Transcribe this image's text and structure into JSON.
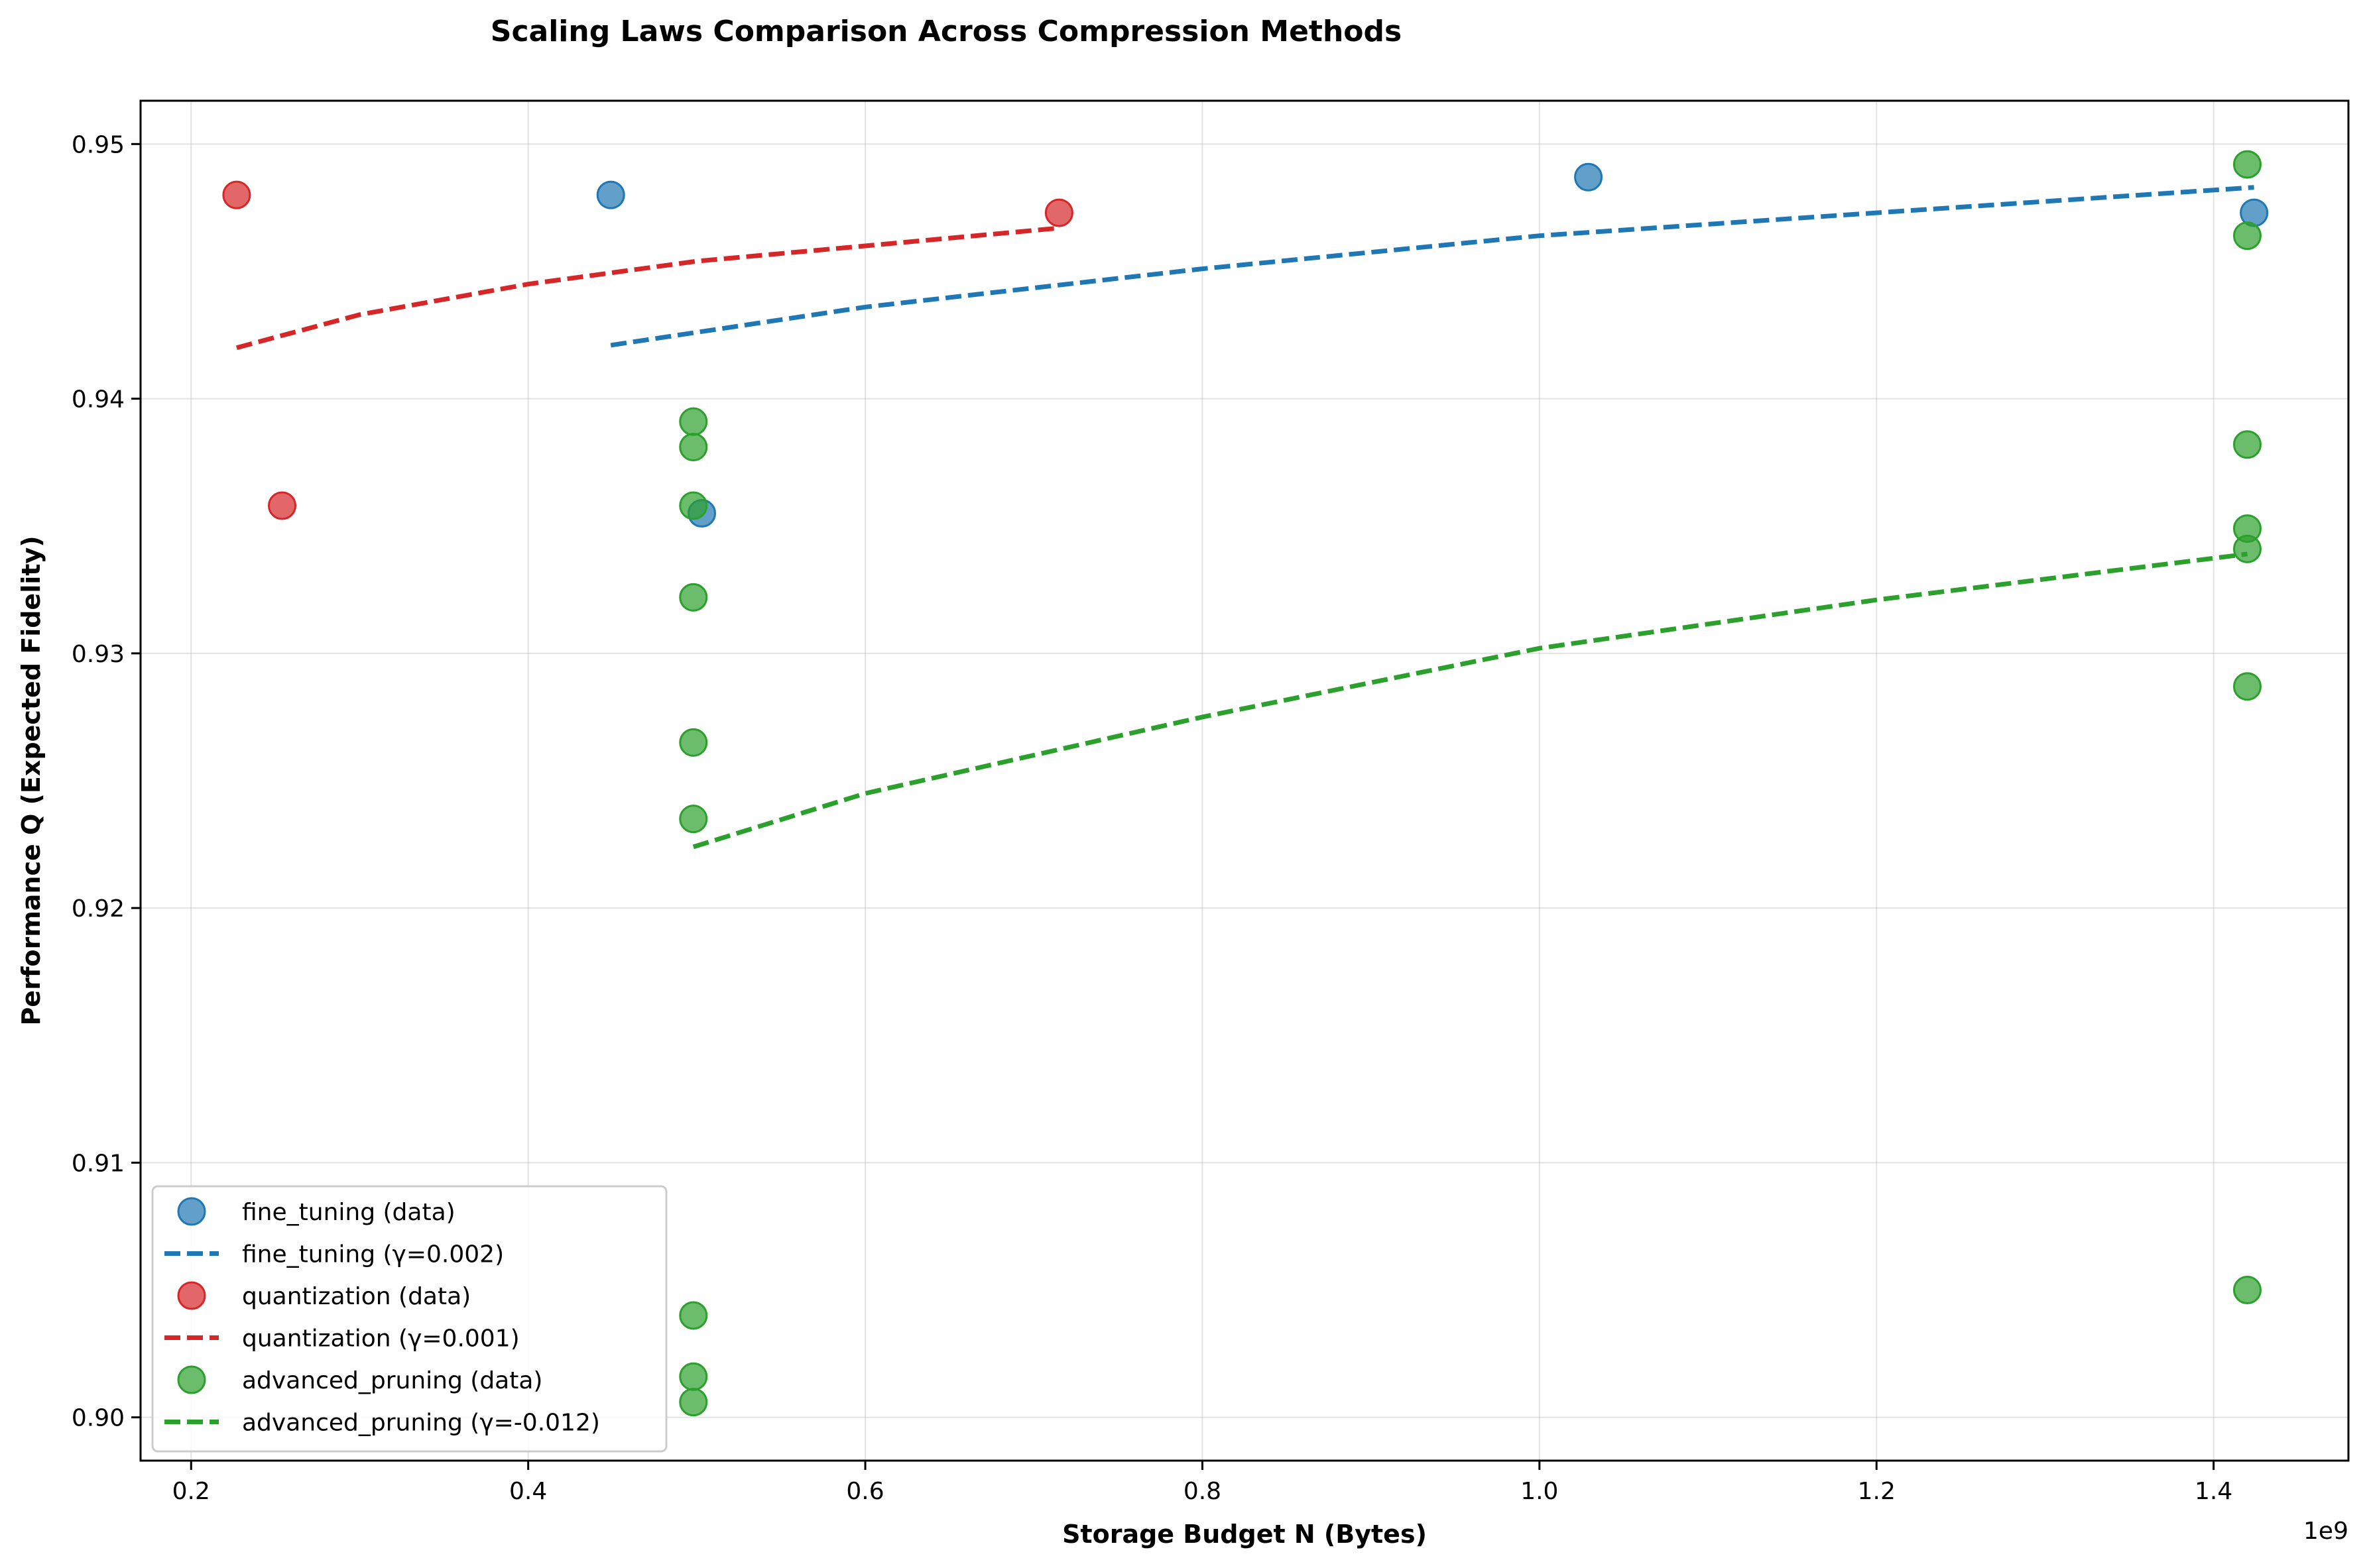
{
  "chart_data": {
    "type": "scatter",
    "title": "Scaling Laws Comparison Across Compression Methods",
    "xlabel": "Storage Budget N (Bytes)",
    "ylabel": "Performance Q (Expected Fidelity)",
    "x_offset_label": "1e9",
    "xlim": [
      0.17,
      1.48
    ],
    "ylim": [
      0.8983,
      0.9517
    ],
    "x_ticks": [
      0.2,
      0.4,
      0.6,
      0.8,
      1.0,
      1.2,
      1.4
    ],
    "x_tick_labels": [
      "0.2",
      "0.4",
      "0.6",
      "0.8",
      "1.0",
      "1.2",
      "1.4"
    ],
    "y_ticks": [
      0.9,
      0.91,
      0.92,
      0.93,
      0.94,
      0.95
    ],
    "y_tick_labels": [
      "0.90",
      "0.91",
      "0.92",
      "0.93",
      "0.94",
      "0.95"
    ],
    "grid": true,
    "legend_position": "lower-left",
    "series": [
      {
        "name": "fine_tuning (data)",
        "kind": "scatter",
        "color": "#1f77b4",
        "points": [
          [
            0.449,
            0.948
          ],
          [
            1.029,
            0.9487
          ],
          [
            1.424,
            0.9473
          ],
          [
            0.503,
            0.9355
          ]
        ]
      },
      {
        "name": "fine_tuning (γ=0.002)",
        "kind": "fit",
        "color": "#1f77b4",
        "points": [
          [
            0.449,
            0.9421
          ],
          [
            0.6,
            0.9436
          ],
          [
            0.8,
            0.9451
          ],
          [
            1.0,
            0.9464
          ],
          [
            1.2,
            0.9473
          ],
          [
            1.424,
            0.9483
          ]
        ]
      },
      {
        "name": "quantization (data)",
        "kind": "scatter",
        "color": "#d62728",
        "points": [
          [
            0.227,
            0.948
          ],
          [
            0.254,
            0.9358
          ],
          [
            0.715,
            0.9473
          ]
        ]
      },
      {
        "name": "quantization (γ=0.001)",
        "kind": "fit",
        "color": "#d62728",
        "points": [
          [
            0.227,
            0.942
          ],
          [
            0.3,
            0.9433
          ],
          [
            0.4,
            0.9445
          ],
          [
            0.5,
            0.9454
          ],
          [
            0.6,
            0.946
          ],
          [
            0.715,
            0.9467
          ]
        ]
      },
      {
        "name": "advanced_pruning (data)",
        "kind": "scatter",
        "color": "#2ca02c",
        "points": [
          [
            0.498,
            0.9391
          ],
          [
            0.498,
            0.9381
          ],
          [
            0.498,
            0.9358
          ],
          [
            0.498,
            0.9322
          ],
          [
            0.498,
            0.9265
          ],
          [
            0.498,
            0.9235
          ],
          [
            0.498,
            0.904
          ],
          [
            0.498,
            0.9016
          ],
          [
            0.498,
            0.9006
          ],
          [
            1.42,
            0.9492
          ],
          [
            1.42,
            0.9464
          ],
          [
            1.42,
            0.9382
          ],
          [
            1.42,
            0.9349
          ],
          [
            1.42,
            0.9341
          ],
          [
            1.42,
            0.9287
          ],
          [
            1.42,
            0.905
          ]
        ]
      },
      {
        "name": "advanced_pruning (γ=-0.012)",
        "kind": "fit",
        "color": "#2ca02c",
        "points": [
          [
            0.498,
            0.9224
          ],
          [
            0.6,
            0.9245
          ],
          [
            0.8,
            0.9275
          ],
          [
            1.0,
            0.9302
          ],
          [
            1.2,
            0.9321
          ],
          [
            1.42,
            0.9339
          ]
        ]
      }
    ]
  }
}
